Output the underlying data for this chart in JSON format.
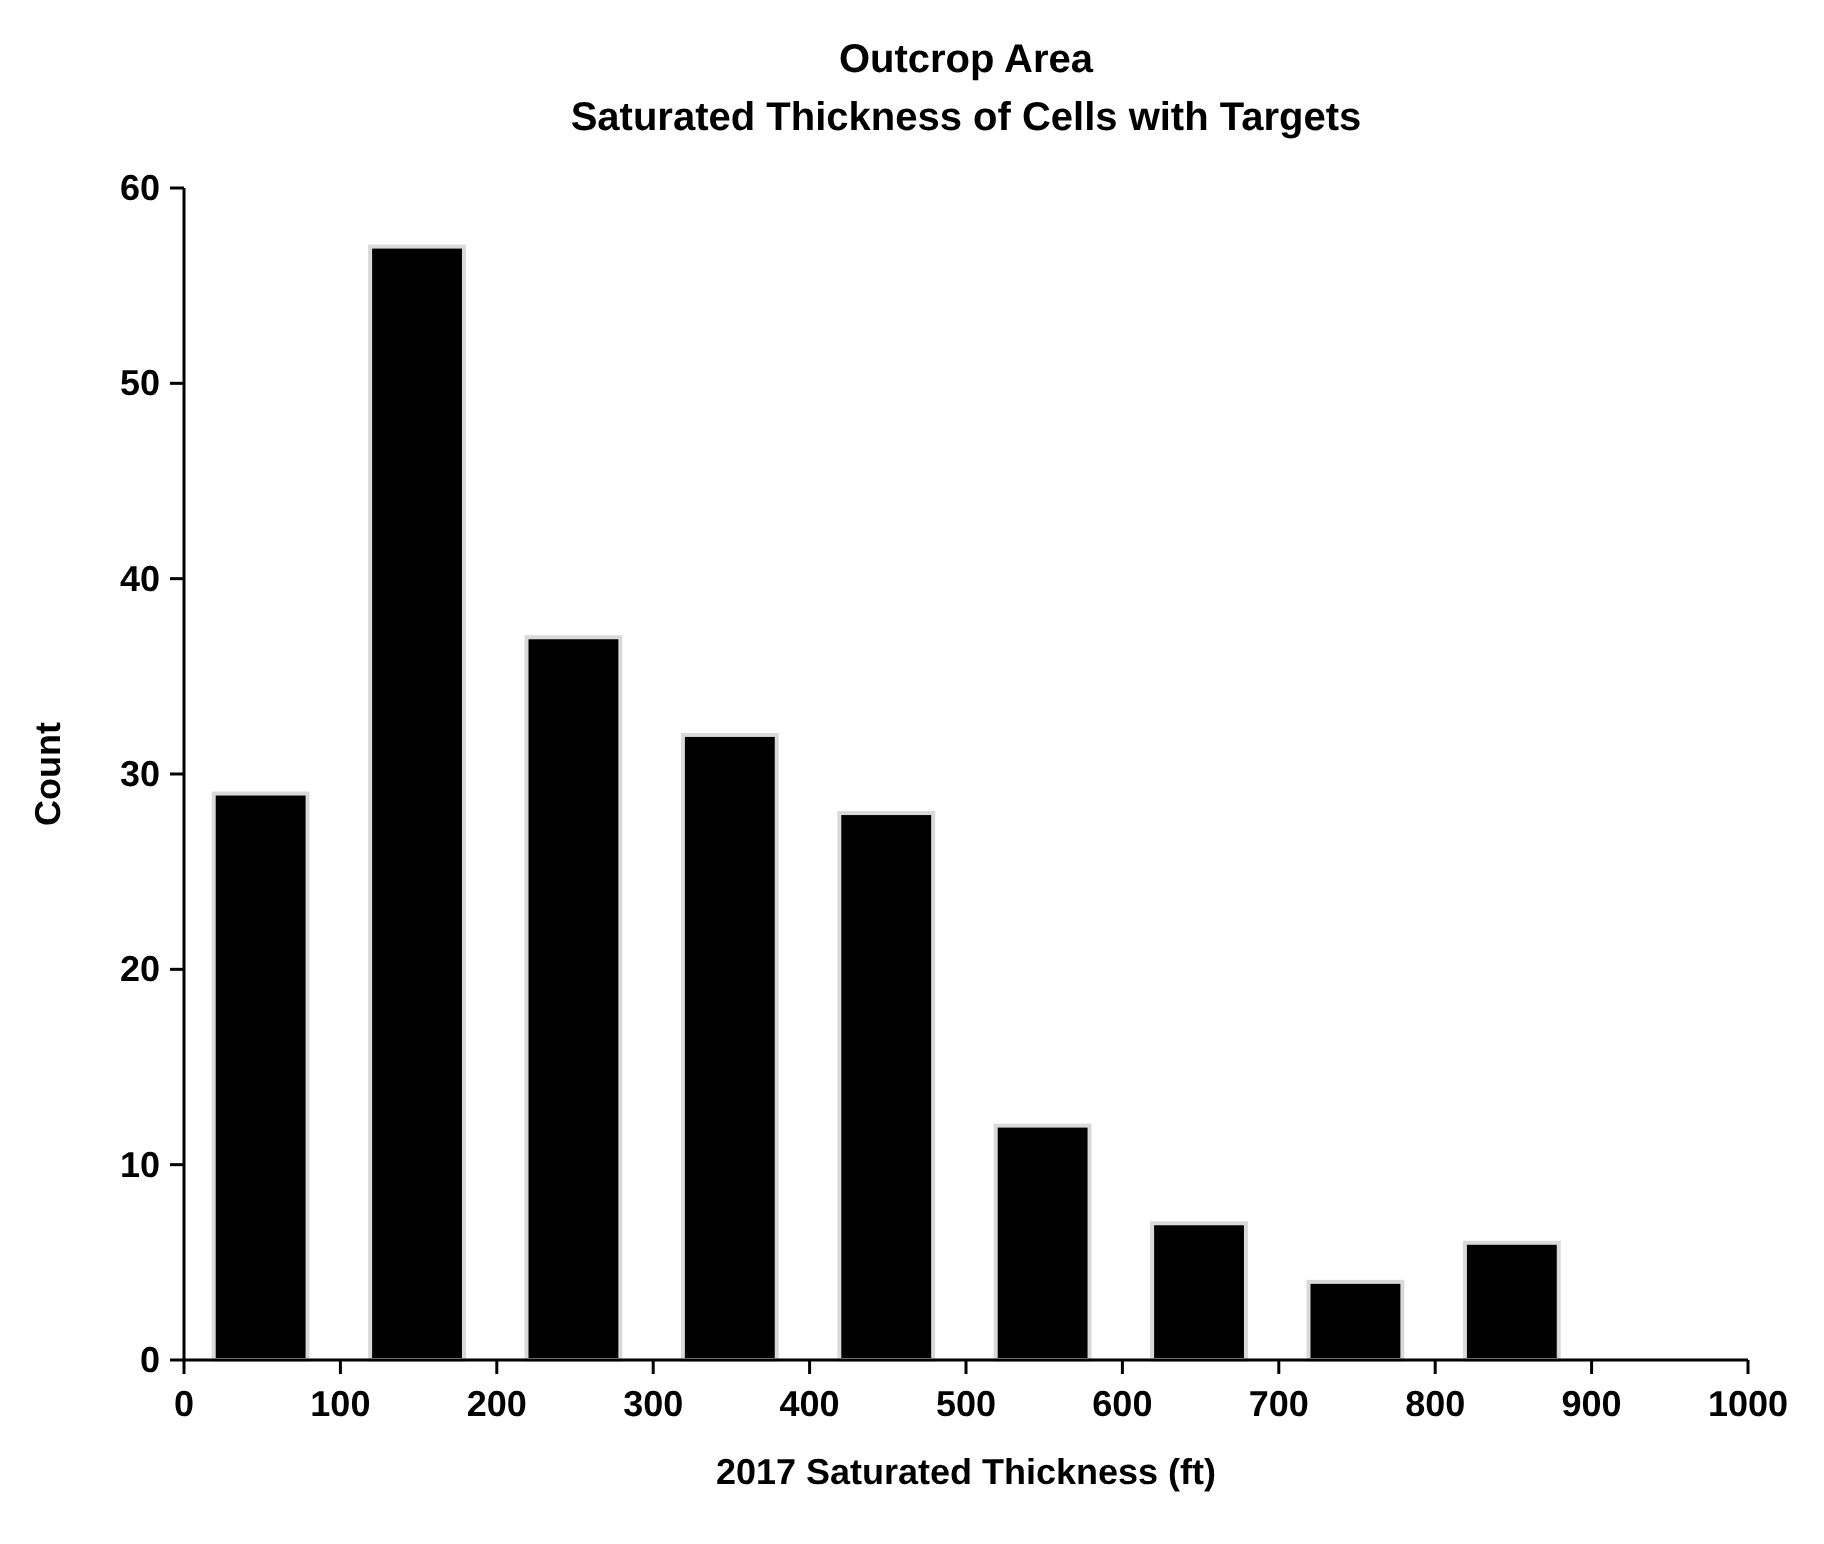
{
  "chart_data": {
    "type": "histogram",
    "title": "Outcrop Area",
    "subtitle": "Saturated Thickness of Cells with Targets",
    "xlabel": "2017 Saturated Thickness (ft)",
    "ylabel": "Count",
    "bins": [
      0,
      100,
      200,
      300,
      400,
      500,
      600,
      700,
      800,
      900
    ],
    "values": [
      29,
      57,
      37,
      32,
      28,
      12,
      7,
      4,
      6
    ],
    "color": "#000000",
    "xlim": [
      0,
      1000
    ],
    "xticks": [
      0,
      100,
      200,
      300,
      400,
      500,
      600,
      700,
      800,
      900,
      1000
    ],
    "ylim": [
      0,
      60
    ],
    "yticks": [
      0,
      10,
      20,
      30,
      40,
      50,
      60
    ],
    "grid": false
  }
}
